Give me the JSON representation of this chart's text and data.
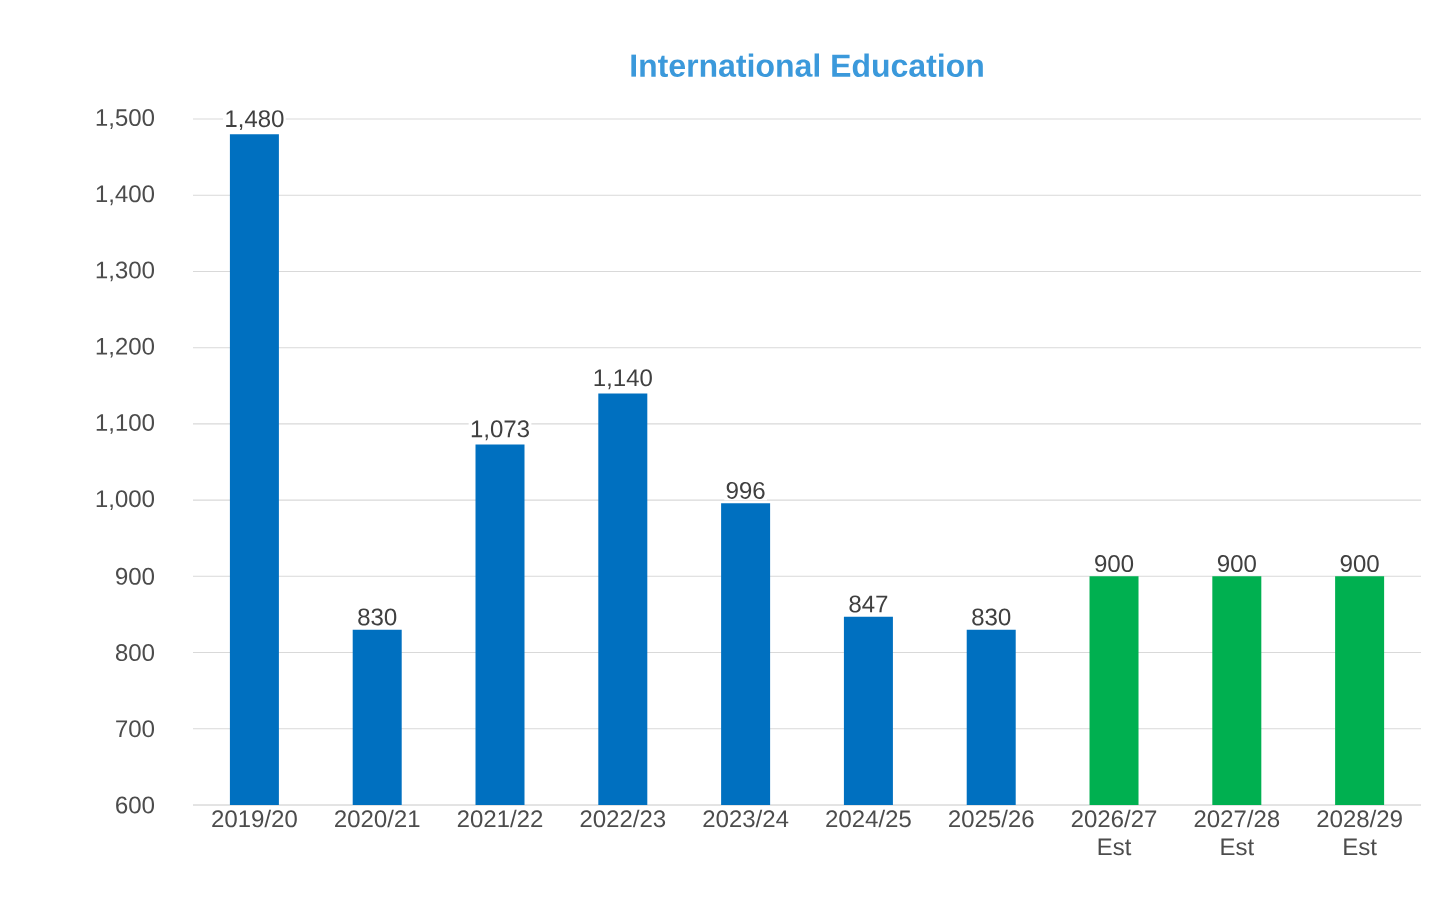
{
  "chart_data": {
    "type": "bar",
    "title": "International Education",
    "categories": [
      "2019/20",
      "2020/21",
      "2021/22",
      "2022/23",
      "2023/24",
      "2024/25",
      "2025/26",
      "2026/27 Est",
      "2027/28 Est",
      "2028/29 Est"
    ],
    "values": [
      1480,
      830,
      1073,
      1140,
      996,
      847,
      830,
      900,
      900,
      900
    ],
    "colors": [
      "#0070c0",
      "#0070c0",
      "#0070c0",
      "#0070c0",
      "#0070c0",
      "#0070c0",
      "#0070c0",
      "#00b050",
      "#00b050",
      "#00b050"
    ],
    "ylim": [
      600,
      1500
    ],
    "yticks": [
      600,
      700,
      800,
      900,
      {
        "value": 1000,
        "label": "1,000"
      },
      {
        "value": 1100,
        "label": "1,100"
      },
      {
        "value": 1200,
        "label": "1,200"
      },
      {
        "value": 1300,
        "label": "1,300"
      },
      {
        "value": 1400,
        "label": "1,400"
      },
      {
        "value": 1500,
        "label": "1,500"
      }
    ],
    "value_labels": [
      "1,480",
      "830",
      "1,073",
      "1,140",
      "996",
      "847",
      "830",
      "900",
      "900",
      "900"
    ],
    "grid": "y"
  }
}
